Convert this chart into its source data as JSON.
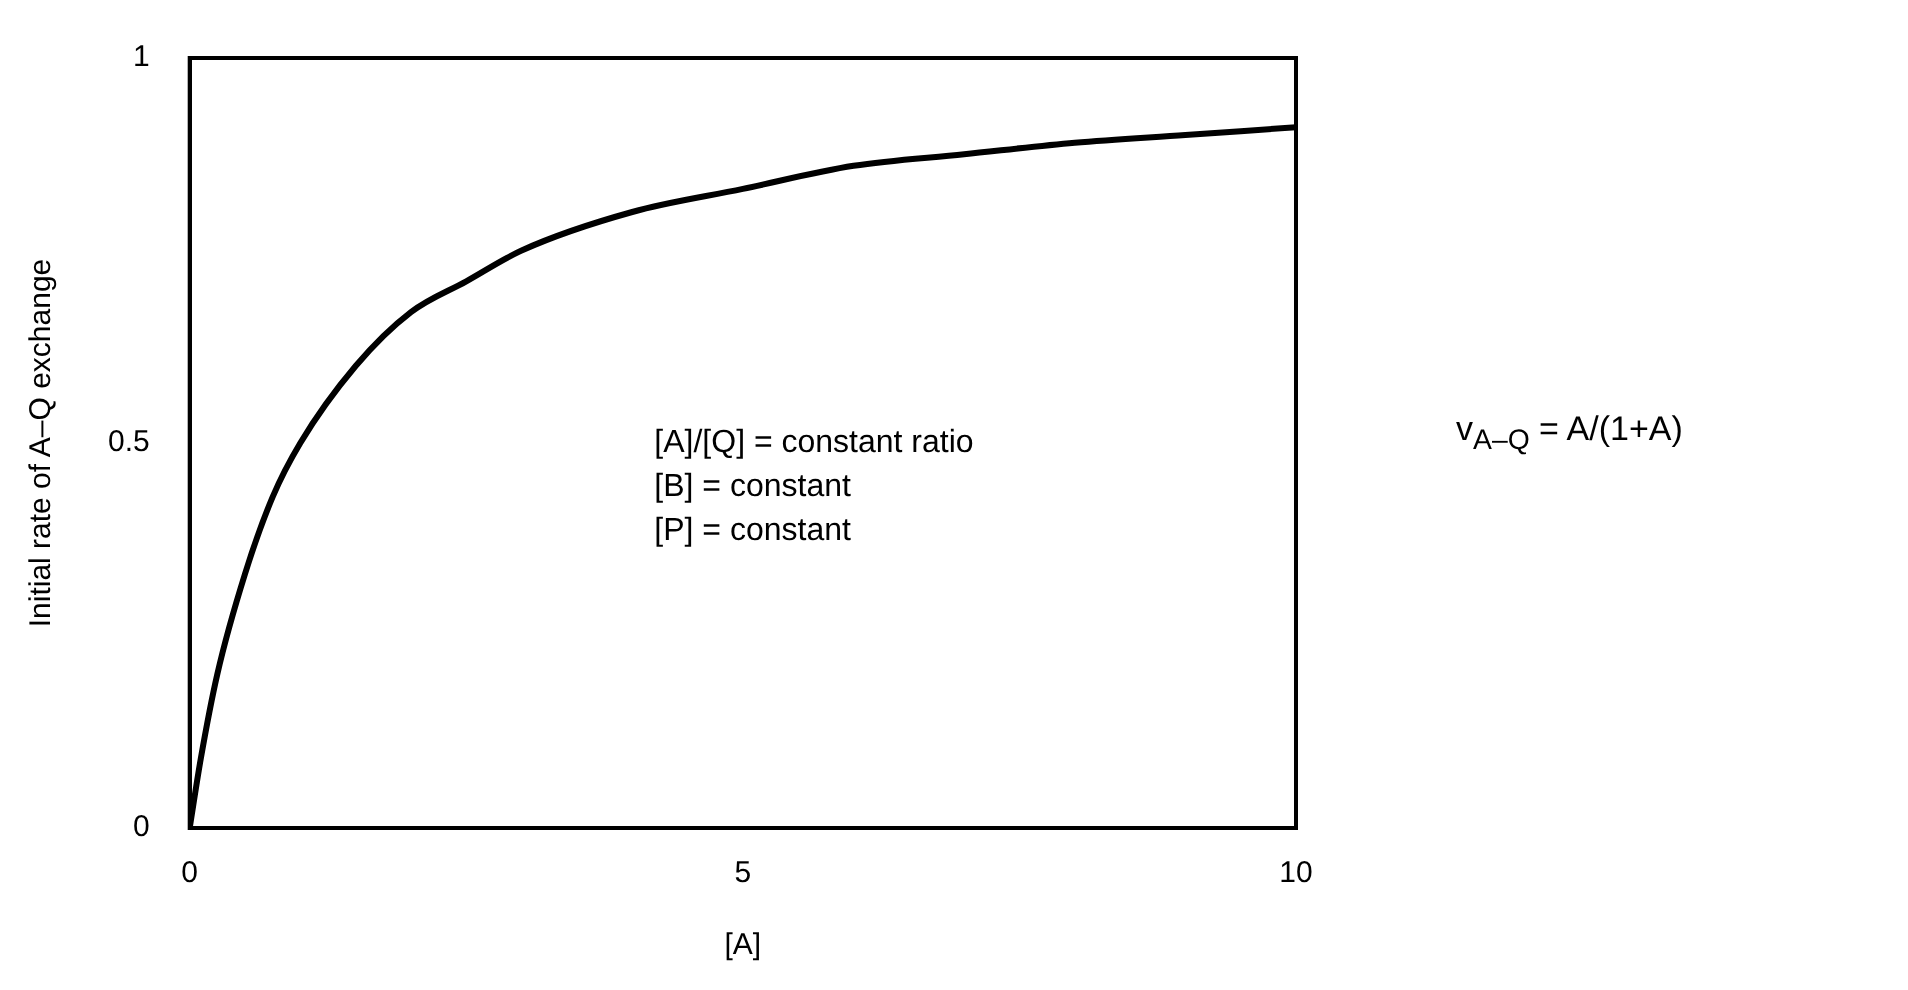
{
  "chart_data": {
    "type": "line",
    "xlabel": "[A]",
    "ylabel": "Initial rate of A–Q exchange",
    "x": [
      0,
      0.1,
      0.25,
      0.5,
      0.75,
      1,
      1.5,
      2,
      2.5,
      3,
      4,
      5,
      6,
      7,
      8,
      9,
      10
    ],
    "series": [
      {
        "color": "#000000",
        "values": [
          0,
          0.09,
          0.2,
          0.33,
          0.43,
          0.5,
          0.6,
          0.67,
          0.71,
          0.75,
          0.8,
          0.83,
          0.86,
          0.875,
          0.89,
          0.9,
          0.91
        ]
      }
    ],
    "xlim": [
      0,
      10
    ],
    "xticks": [
      0,
      5,
      10
    ],
    "ylim": [
      0,
      1
    ],
    "yticks": [
      0,
      0.5,
      1
    ],
    "grid": false,
    "legend": false,
    "marker": "none",
    "line_style": "solid",
    "annotations": [
      "[A]/[Q] = constant ratio",
      "[B] = constant",
      "[P] = constant",
      "v$_{A–Q}$ = A/(1+A)"
    ]
  }
}
